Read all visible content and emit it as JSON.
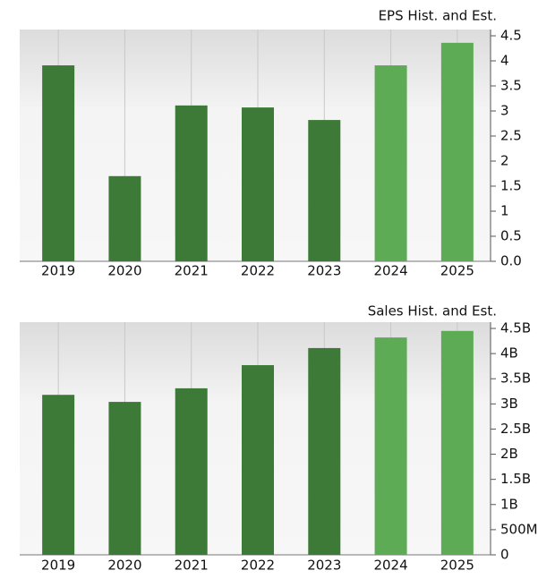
{
  "chart_data": [
    {
      "type": "bar",
      "title": "EPS Hist. and Est.",
      "categories": [
        "2019",
        "2020",
        "2021",
        "2022",
        "2023",
        "2024",
        "2025"
      ],
      "values": [
        3.91,
        1.7,
        3.11,
        3.07,
        2.82,
        3.91,
        4.36
      ],
      "colors": [
        "#3d7a37",
        "#3d7a37",
        "#3d7a37",
        "#3d7a37",
        "#3d7a37",
        "#5dab55",
        "#5dab55"
      ],
      "ylim": [
        0,
        4.5
      ],
      "yticks": [
        {
          "value": 0,
          "label": "0.0"
        },
        0.5,
        1,
        1.5,
        2,
        2.5,
        3,
        3.5,
        4,
        4.5
      ],
      "grid": true
    },
    {
      "type": "bar",
      "title": "Sales Hist. and Est.",
      "categories": [
        "2019",
        "2020",
        "2021",
        "2022",
        "2023",
        "2024",
        "2025"
      ],
      "values": [
        3180000000,
        3040000000,
        3310000000,
        3770000000,
        4110000000,
        4320000000,
        4450000000
      ],
      "colors": [
        "#3d7a37",
        "#3d7a37",
        "#3d7a37",
        "#3d7a37",
        "#3d7a37",
        "#5dab55",
        "#5dab55"
      ],
      "ylim": [
        0,
        4500000000
      ],
      "yticks": [
        0,
        {
          "value": 500000000,
          "label": "500M"
        },
        {
          "value": 1000000000,
          "label": "1B"
        },
        {
          "value": 1500000000,
          "label": "1.5B"
        },
        {
          "value": 2000000000,
          "label": "2B"
        },
        {
          "value": 2500000000,
          "label": "2.5B"
        },
        {
          "value": 3000000000,
          "label": "3B"
        },
        {
          "value": 3500000000,
          "label": "3.5B"
        },
        {
          "value": 4000000000,
          "label": "4B"
        },
        {
          "value": 4500000000,
          "label": "4.5B"
        }
      ],
      "grid": true
    }
  ]
}
